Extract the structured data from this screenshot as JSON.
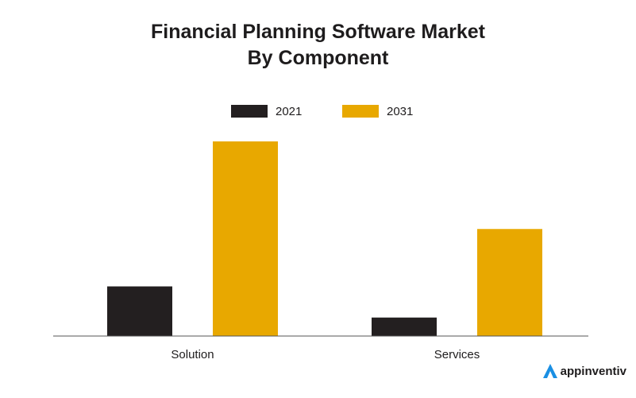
{
  "chart_data": {
    "type": "bar",
    "title": "Financial Planning Software Market",
    "subtitle": "By Component",
    "categories": [
      "Solution",
      "Services"
    ],
    "series": [
      {
        "name": "2021",
        "color": "#231f20",
        "values": [
          25.5,
          9.5
        ]
      },
      {
        "name": "2031",
        "color": "#e8a800",
        "values": [
          100,
          55
        ]
      }
    ],
    "xlabel": "",
    "ylabel": "",
    "ylim": [
      0,
      100
    ],
    "grid": false,
    "legend_position": "top-center"
  },
  "brand": {
    "name": "appinventiv",
    "icon": "appinventiv-logo-icon",
    "color": "#1a8fe3"
  }
}
